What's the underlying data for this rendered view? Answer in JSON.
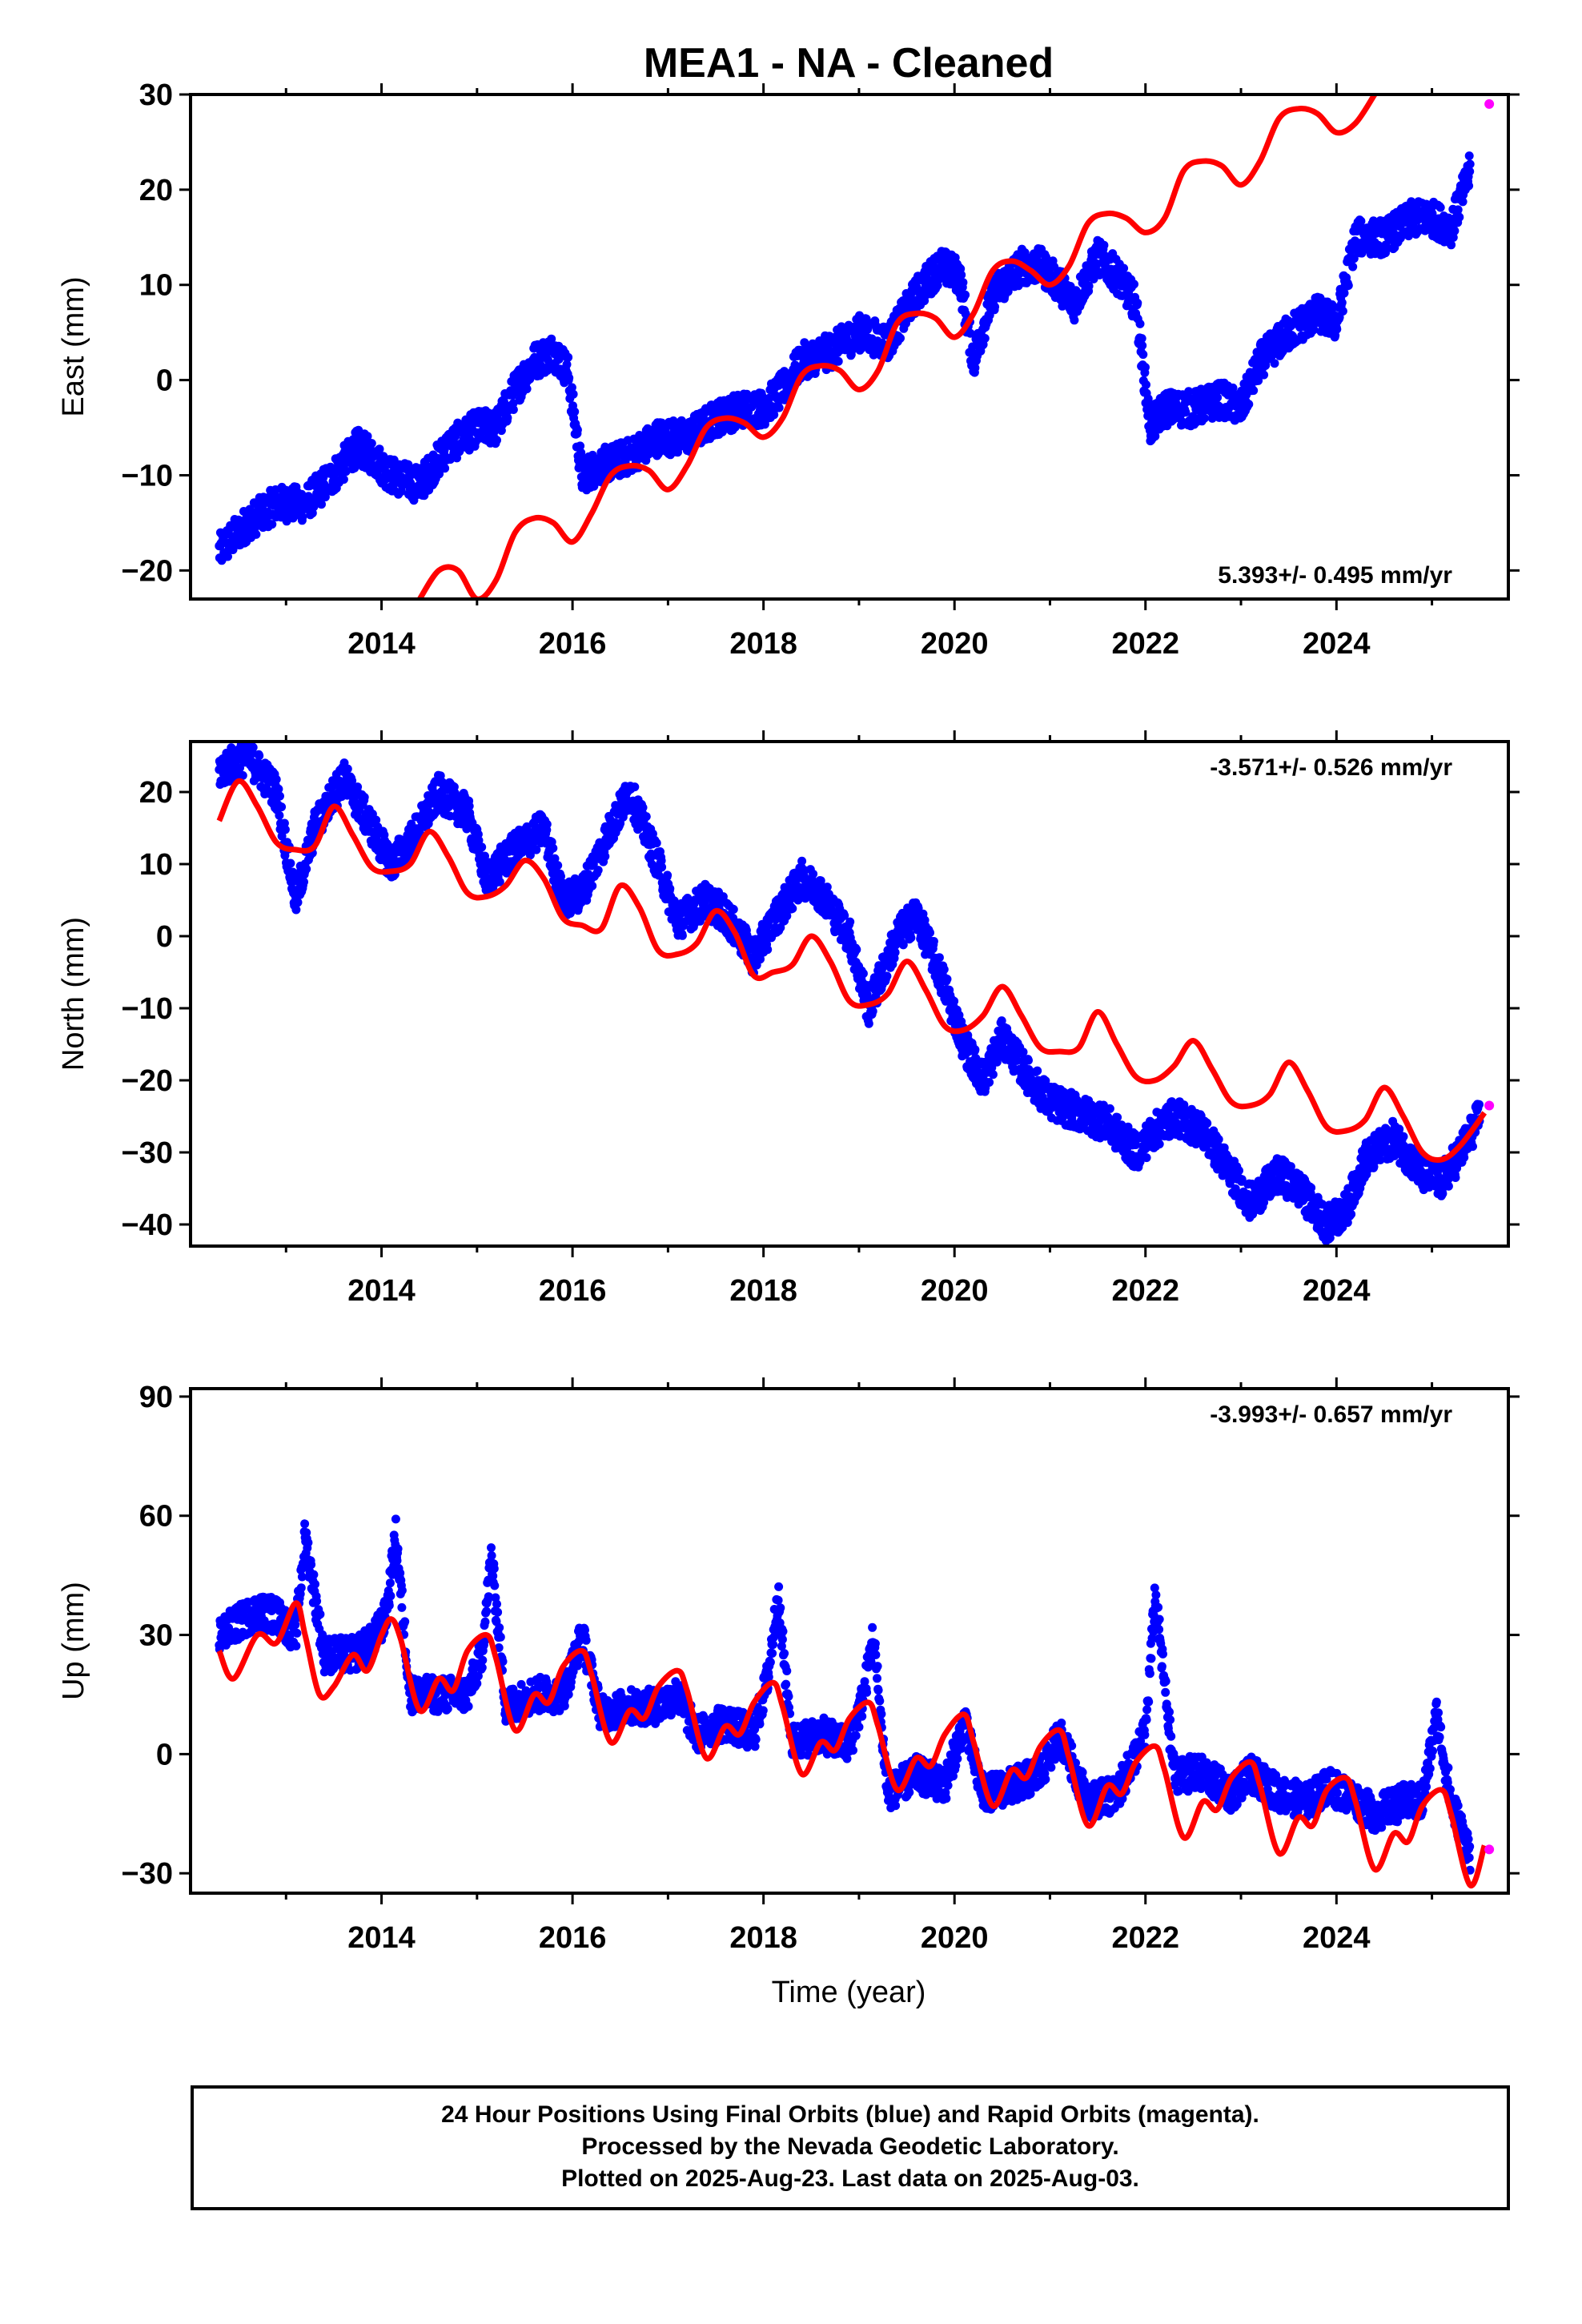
{
  "title": "MEA1  - NA - Cleaned",
  "colors": {
    "final_orbits": "#0000ff",
    "rapid_orbits": "#ff00ff",
    "model": "#ff0000",
    "frame": "#000000"
  },
  "x_ticks": [
    "2014",
    "2016",
    "2018",
    "2020",
    "2022",
    "2024"
  ],
  "x_label": "Time (year)",
  "footer": {
    "line1": "24 Hour Positions Using Final Orbits (blue) and Rapid Orbits (magenta).",
    "line2": "Processed by the Nevada Geodetic Laboratory.",
    "line3": "Plotted on 2025-Aug-23. Last data on 2025-Aug-03."
  },
  "chart_data": [
    {
      "type": "scatter",
      "component": "east",
      "ylabel": "East (mm)",
      "ylim": [
        -23,
        30
      ],
      "xlim": [
        2012.0,
        2025.8
      ],
      "y_ticks": [
        "30",
        "20",
        "10",
        "0",
        "−10",
        "−20"
      ],
      "rate_label": "5.393+/- 0.495 mm/yr",
      "rate_position": "bottom-right",
      "series": [
        {
          "type": "scatter",
          "color": "blue",
          "x": [
            2012.3,
            2012.6,
            2012.9,
            2013.2,
            2013.5,
            2013.75,
            2013.9,
            2014.1,
            2014.4,
            2014.7,
            2015.0,
            2015.2,
            2015.4,
            2015.6,
            2015.8,
            2015.95,
            2016.1,
            2016.3,
            2016.6,
            2016.9,
            2017.2,
            2017.5,
            2017.8,
            2018.0,
            2018.2,
            2018.4,
            2018.7,
            2019.0,
            2019.3,
            2019.6,
            2019.85,
            2020.05,
            2020.2,
            2020.4,
            2020.7,
            2020.9,
            2021.1,
            2021.25,
            2021.5,
            2021.7,
            2021.9,
            2022.05,
            2022.2,
            2022.5,
            2022.8,
            2023.0,
            2023.2,
            2023.5,
            2023.8,
            2024.0,
            2024.2,
            2024.5,
            2024.8,
            2025.0,
            2025.2,
            2025.4
          ],
          "y": [
            -18,
            -15,
            -13,
            -13,
            -10,
            -7,
            -8,
            -10,
            -11,
            -7,
            -5,
            -5,
            -1,
            2,
            3,
            1,
            -10,
            -9,
            -8,
            -6,
            -6,
            -4,
            -3,
            -3,
            -1,
            2,
            3,
            5,
            4,
            9,
            12,
            11,
            2,
            9,
            12,
            12,
            10,
            8,
            13,
            11,
            8,
            -5,
            -3,
            -3,
            -2,
            -3,
            2,
            5,
            7,
            6,
            15,
            15,
            17,
            17,
            16,
            22
          ]
        },
        {
          "type": "line",
          "name": "",
          "color": "red",
          "x": [
            2014.4,
            2014.6,
            2014.8,
            2015.0,
            2015.2,
            2015.4,
            2015.6,
            2015.8,
            2016.0,
            2016.2,
            2016.4,
            2016.6,
            2016.8,
            2017.0,
            2017.2,
            2017.4,
            2017.6,
            2017.8,
            2018.0,
            2018.2,
            2018.4,
            2018.6,
            2018.8,
            2019.0,
            2019.2,
            2019.4,
            2019.6,
            2019.8,
            2020.0,
            2020.2,
            2020.4,
            2020.6,
            2020.8,
            2021.0,
            2021.2,
            2021.4,
            2021.6,
            2021.8,
            2022.0,
            2022.2,
            2022.4,
            2022.6,
            2022.8,
            2023.0,
            2023.2,
            2023.4,
            2023.6,
            2023.8,
            2024.0,
            2024.2,
            2024.4
          ],
          "y": [
            -23,
            -20,
            -20,
            -23,
            -21,
            -16,
            -14.5,
            -15,
            -17,
            -14,
            -10,
            -9,
            -9.5,
            -11.5,
            -9,
            -5,
            -4,
            -4.5,
            -6,
            -4,
            0.5,
            1.5,
            1,
            -1,
            1,
            6,
            7,
            6.5,
            4.5,
            7,
            11.5,
            12.5,
            11.5,
            10,
            12,
            16.5,
            17.5,
            17,
            15.5,
            17,
            22,
            23,
            22.5,
            20.5,
            23,
            27.5,
            28.5,
            28,
            26,
            27,
            30
          ]
        },
        {
          "type": "scatter",
          "color": "magenta",
          "x": [
            2025.6
          ],
          "y": [
            29
          ]
        }
      ]
    },
    {
      "type": "scatter",
      "component": "north",
      "ylabel": "North (mm)",
      "ylim": [
        -43,
        27
      ],
      "xlim": [
        2012.0,
        2025.8
      ],
      "y_ticks": [
        "20",
        "10",
        "0",
        "−10",
        "−20",
        "−30",
        "−40"
      ],
      "rate_label": "-3.571+/- 0.526 mm/yr",
      "rate_position": "top-right",
      "series": [
        {
          "type": "scatter",
          "color": "blue",
          "x": [
            2012.3,
            2012.6,
            2012.9,
            2013.1,
            2013.3,
            2013.6,
            2013.9,
            2014.1,
            2014.3,
            2014.6,
            2014.9,
            2015.1,
            2015.4,
            2015.7,
            2015.9,
            2016.1,
            2016.4,
            2016.6,
            2016.9,
            2017.1,
            2017.4,
            2017.6,
            2017.9,
            2018.1,
            2018.4,
            2018.6,
            2018.9,
            2019.1,
            2019.4,
            2019.6,
            2019.9,
            2020.1,
            2020.3,
            2020.5,
            2020.8,
            2021.0,
            2021.2,
            2021.6,
            2021.9,
            2022.1,
            2022.3,
            2022.6,
            2022.9,
            2023.1,
            2023.4,
            2023.6,
            2023.9,
            2024.1,
            2024.3,
            2024.6,
            2024.9,
            2025.1,
            2025.3,
            2025.5
          ],
          "y": [
            23,
            25,
            20,
            5,
            15,
            22,
            15,
            10,
            13,
            20,
            17,
            8,
            12,
            15,
            5,
            6,
            15,
            20,
            10,
            2,
            5,
            3,
            -3,
            2,
            8,
            6,
            0,
            -10,
            0,
            3,
            -7,
            -15,
            -20,
            -14,
            -20,
            -23,
            -24,
            -26,
            -30,
            -27,
            -25,
            -27,
            -33,
            -37,
            -33,
            -35,
            -40,
            -38,
            -31,
            -28,
            -33,
            -34,
            -30,
            -25
          ]
        },
        {
          "type": "line",
          "name": "",
          "color": "red",
          "x": [
            2012.3,
            2012.5,
            2012.7,
            2012.9,
            2013.1,
            2013.3,
            2013.5,
            2013.7,
            2013.9,
            2014.1,
            2014.3,
            2014.5,
            2014.7,
            2014.9,
            2015.1,
            2015.3,
            2015.5,
            2015.7,
            2015.9,
            2016.1,
            2016.3,
            2016.5,
            2016.7,
            2016.9,
            2017.1,
            2017.3,
            2017.5,
            2017.7,
            2017.9,
            2018.1,
            2018.3,
            2018.5,
            2018.7,
            2018.9,
            2019.1,
            2019.3,
            2019.5,
            2019.7,
            2019.9,
            2020.1,
            2020.3,
            2020.5,
            2020.7,
            2020.9,
            2021.1,
            2021.3,
            2021.5,
            2021.7,
            2021.9,
            2022.1,
            2022.3,
            2022.5,
            2022.7,
            2022.9,
            2023.1,
            2023.3,
            2023.5,
            2023.7,
            2023.9,
            2024.1,
            2024.3,
            2024.5,
            2024.7,
            2024.9,
            2025.1,
            2025.3,
            2025.55
          ],
          "y": [
            16,
            21.5,
            18,
            13,
            12,
            12.5,
            18,
            14,
            9.5,
            9,
            10,
            14.5,
            11,
            6,
            5.5,
            7,
            10.5,
            8,
            2.5,
            1.5,
            1,
            7,
            4,
            -2,
            -2.5,
            -1,
            3.5,
            0.5,
            -5.5,
            -5,
            -4,
            0,
            -3.5,
            -9,
            -9.5,
            -8,
            -3.5,
            -7.5,
            -12.5,
            -13,
            -11,
            -7,
            -11,
            -15.5,
            -16,
            -15.5,
            -10.5,
            -15,
            -19.5,
            -20,
            -18,
            -14.5,
            -18.5,
            -23,
            -23.5,
            -22,
            -17.5,
            -21.5,
            -26.5,
            -27,
            -25.5,
            -21,
            -25,
            -30,
            -31,
            -29,
            -24.5
          ]
        },
        {
          "type": "scatter",
          "color": "magenta",
          "x": [
            2025.6
          ],
          "y": [
            -23.5
          ]
        }
      ]
    },
    {
      "type": "scatter",
      "component": "up",
      "ylabel": "Up (mm)",
      "ylim": [
        -35,
        92
      ],
      "xlim": [
        2012.0,
        2025.8
      ],
      "y_ticks": [
        "90",
        "60",
        "30",
        "0",
        "−30"
      ],
      "rate_label": "-3.993+/- 0.657 mm/yr",
      "rate_position": "top-right",
      "series": [
        {
          "type": "scatter",
          "color": "blue",
          "x": [
            2012.3,
            2012.5,
            2012.7,
            2012.9,
            2013.1,
            2013.2,
            2013.4,
            2013.7,
            2013.9,
            2014.05,
            2014.15,
            2014.3,
            2014.6,
            2014.9,
            2015.05,
            2015.15,
            2015.3,
            2015.6,
            2015.9,
            2016.1,
            2016.3,
            2016.6,
            2016.9,
            2017.1,
            2017.3,
            2017.6,
            2017.9,
            2018.05,
            2018.15,
            2018.3,
            2018.6,
            2018.9,
            2019.05,
            2019.15,
            2019.3,
            2019.6,
            2019.9,
            2020.1,
            2020.3,
            2020.6,
            2020.9,
            2021.1,
            2021.4,
            2021.7,
            2022.0,
            2022.1,
            2022.3,
            2022.6,
            2022.9,
            2023.1,
            2023.4,
            2023.7,
            2023.9,
            2024.1,
            2024.4,
            2024.7,
            2024.9,
            2025.05,
            2025.2,
            2025.4
          ],
          "y": [
            30,
            33,
            36,
            35,
            30,
            55,
            25,
            25,
            28,
            35,
            55,
            15,
            15,
            15,
            25,
            50,
            12,
            15,
            15,
            30,
            10,
            12,
            12,
            15,
            5,
            8,
            5,
            20,
            40,
            3,
            5,
            2,
            15,
            30,
            -10,
            -5,
            -8,
            8,
            -10,
            -8,
            -5,
            5,
            -12,
            -10,
            5,
            40,
            -5,
            -5,
            -10,
            -5,
            -10,
            -12,
            -8,
            -10,
            -15,
            -12,
            -12,
            10,
            -12,
            -25
          ]
        },
        {
          "type": "line",
          "name": "",
          "color": "red",
          "x": [
            2012.3,
            2012.45,
            2012.7,
            2012.9,
            2013.1,
            2013.2,
            2013.35,
            2013.5,
            2013.7,
            2013.85,
            2014.0,
            2014.1,
            2014.2,
            2014.4,
            2014.6,
            2014.75,
            2014.9,
            2015.1,
            2015.2,
            2015.4,
            2015.6,
            2015.75,
            2015.9,
            2016.1,
            2016.2,
            2016.4,
            2016.6,
            2016.75,
            2016.9,
            2017.1,
            2017.2,
            2017.4,
            2017.6,
            2017.75,
            2017.9,
            2018.1,
            2018.2,
            2018.4,
            2018.6,
            2018.75,
            2018.9,
            2019.1,
            2019.2,
            2019.4,
            2019.6,
            2019.75,
            2019.9,
            2020.1,
            2020.2,
            2020.4,
            2020.6,
            2020.75,
            2020.9,
            2021.1,
            2021.2,
            2021.4,
            2021.6,
            2021.75,
            2021.9,
            2022.1,
            2022.2,
            2022.4,
            2022.6,
            2022.75,
            2022.9,
            2023.1,
            2023.2,
            2023.4,
            2023.6,
            2023.75,
            2023.9,
            2024.1,
            2024.2,
            2024.4,
            2024.6,
            2024.75,
            2024.9,
            2025.1,
            2025.2,
            2025.4,
            2025.55
          ],
          "y": [
            26,
            19,
            30,
            28,
            38,
            30,
            15,
            17,
            25,
            21,
            30,
            34,
            29,
            11,
            19,
            16,
            26,
            30,
            24,
            6,
            15,
            13,
            22,
            26,
            20,
            3,
            11,
            9,
            17,
            21,
            16,
            -1,
            7,
            5,
            13,
            18,
            12,
            -5,
            3,
            1,
            9,
            13,
            7,
            -9,
            -1,
            -3,
            5,
            10,
            3,
            -13,
            -4,
            -6,
            2,
            6,
            -1,
            -18,
            -8,
            -10,
            -2,
            2,
            -4,
            -21,
            -12,
            -14,
            -6,
            -2,
            -8,
            -25,
            -16,
            -18,
            -9,
            -6,
            -12,
            -29,
            -20,
            -22,
            -13,
            -9,
            -15,
            -33,
            -23
          ]
        },
        {
          "type": "scatter",
          "color": "magenta",
          "x": [
            2025.6
          ],
          "y": [
            -24
          ]
        }
      ]
    }
  ]
}
